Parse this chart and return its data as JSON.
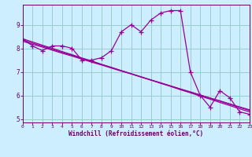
{
  "x_hours": [
    0,
    1,
    2,
    3,
    4,
    5,
    6,
    7,
    8,
    9,
    10,
    11,
    12,
    13,
    14,
    15,
    16,
    17,
    18,
    19,
    20,
    21,
    22,
    23
  ],
  "windchill": [
    8.4,
    8.1,
    7.9,
    8.1,
    8.1,
    8.0,
    7.5,
    7.5,
    7.6,
    7.9,
    8.7,
    9.0,
    8.7,
    9.2,
    9.5,
    9.6,
    9.6,
    7.0,
    6.0,
    5.5,
    6.2,
    5.9,
    5.3,
    5.2
  ],
  "reg_line1": [
    8.4,
    8.27,
    8.13,
    8.0,
    7.86,
    7.73,
    7.59,
    7.46,
    7.32,
    7.19,
    7.05,
    6.92,
    6.78,
    6.65,
    6.51,
    6.38,
    6.24,
    6.11,
    5.97,
    5.84,
    5.7,
    5.57,
    5.43,
    5.3
  ],
  "reg_line2": [
    8.35,
    8.22,
    8.09,
    7.96,
    7.83,
    7.7,
    7.57,
    7.44,
    7.31,
    7.18,
    7.05,
    6.92,
    6.79,
    6.66,
    6.53,
    6.4,
    6.27,
    6.14,
    6.01,
    5.88,
    5.75,
    5.62,
    5.49,
    5.36
  ],
  "reg_line3": [
    8.3,
    8.17,
    8.05,
    7.92,
    7.79,
    7.67,
    7.54,
    7.41,
    7.29,
    7.16,
    7.03,
    6.91,
    6.78,
    6.65,
    6.53,
    6.4,
    6.27,
    6.15,
    6.02,
    5.89,
    5.77,
    5.64,
    5.51,
    5.39
  ],
  "line_color": "#990099",
  "bg_color": "#cceeff",
  "grid_color": "#99cccc",
  "axis_color": "#660066",
  "ylim": [
    4.85,
    9.85
  ],
  "yticks": [
    5,
    6,
    7,
    8,
    9
  ],
  "xlim": [
    0,
    23
  ],
  "xticks": [
    0,
    1,
    2,
    3,
    4,
    5,
    6,
    7,
    8,
    9,
    10,
    11,
    12,
    13,
    14,
    15,
    16,
    17,
    18,
    19,
    20,
    21,
    22,
    23
  ],
  "xlabel": "Windchill (Refroidissement éolien,°C)",
  "marker": "+",
  "markersize": 4,
  "linewidth": 0.9
}
